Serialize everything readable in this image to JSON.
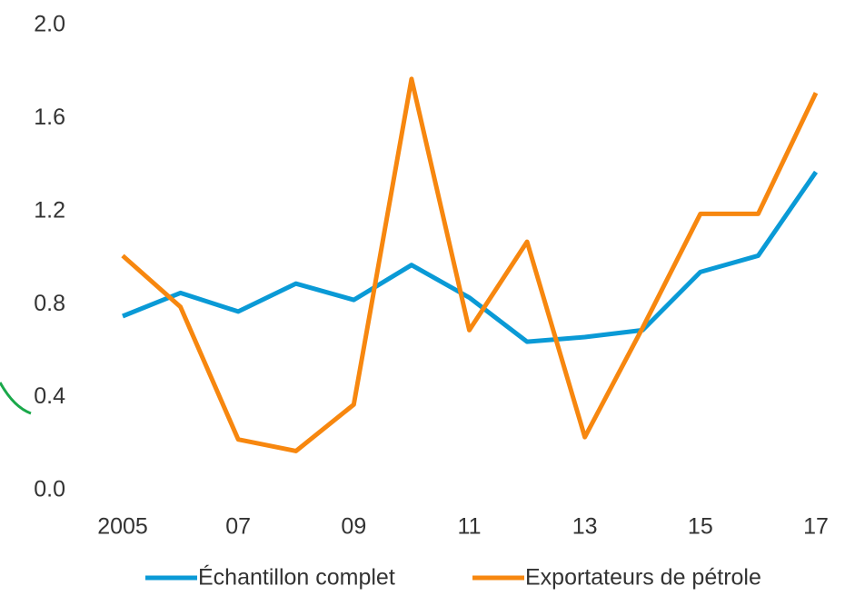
{
  "chart_data": {
    "type": "line",
    "categories": [
      "2005",
      null,
      "07",
      null,
      "09",
      null,
      "11",
      null,
      "13",
      null,
      "15",
      null,
      "17"
    ],
    "series": [
      {
        "name": "Échantillon complet",
        "color": "#0a9ad6",
        "values": [
          0.75,
          0.85,
          0.77,
          0.89,
          0.82,
          0.97,
          0.83,
          0.64,
          0.66,
          0.69,
          0.94,
          1.01,
          1.37
        ]
      },
      {
        "name": "Exportateurs de pétrole",
        "color": "#f7870f",
        "values": [
          1.01,
          0.79,
          0.22,
          0.17,
          0.37,
          1.77,
          0.69,
          1.07,
          0.23,
          0.7,
          1.19,
          1.19,
          1.71
        ]
      }
    ],
    "ylim": [
      0,
      2
    ],
    "yticks": [
      {
        "value": 0,
        "label": "0.0"
      },
      0.4,
      0.8,
      1.2,
      1.6,
      {
        "value": 2,
        "label": "2.0"
      }
    ],
    "grid": false,
    "legend": "bottom"
  }
}
